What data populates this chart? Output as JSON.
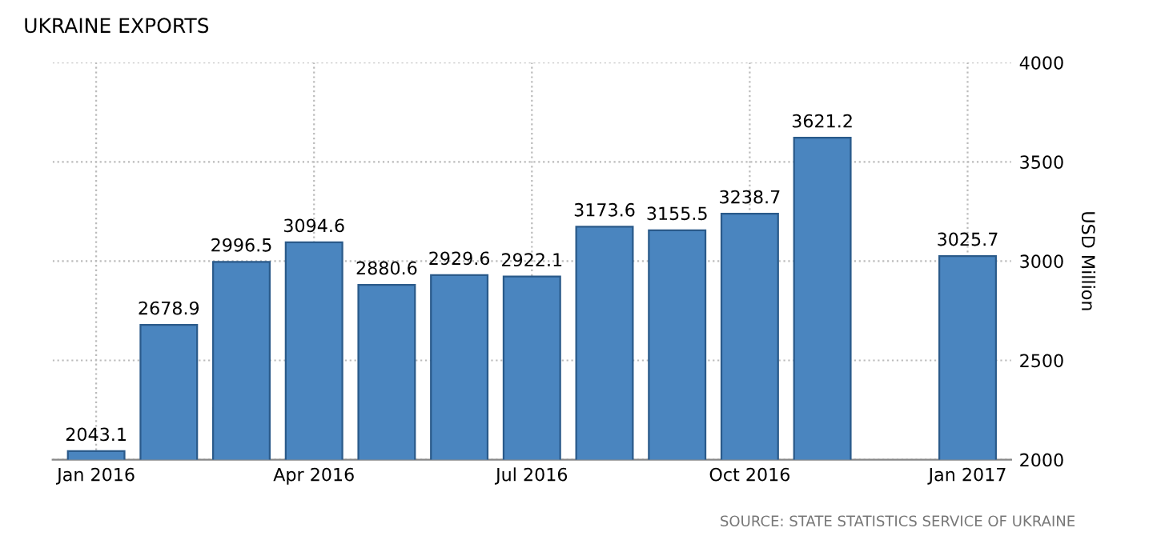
{
  "chart_data": {
    "type": "bar",
    "title": "UKRAINE EXPORTS",
    "ylabel": "USD Million",
    "categories": [
      "Jan 2016",
      null,
      null,
      "Apr 2016",
      null,
      null,
      "Jul 2016",
      null,
      null,
      "Oct 2016",
      null,
      null,
      "Jan 2017"
    ],
    "values": [
      2043.1,
      2678.9,
      2996.5,
      3094.6,
      2880.6,
      2929.6,
      2922.1,
      3173.6,
      3155.5,
      3238.7,
      3621.2,
      null,
      3025.7
    ],
    "color": "#4a85bf",
    "data_labels": true,
    "ylim": [
      2000,
      4000
    ],
    "yticks": [
      2000,
      2500,
      3000,
      3500,
      4000
    ],
    "grid": true,
    "annotations": [
      "SOURCE: STATE STATISTICS SERVICE OF UKRAINE"
    ]
  }
}
